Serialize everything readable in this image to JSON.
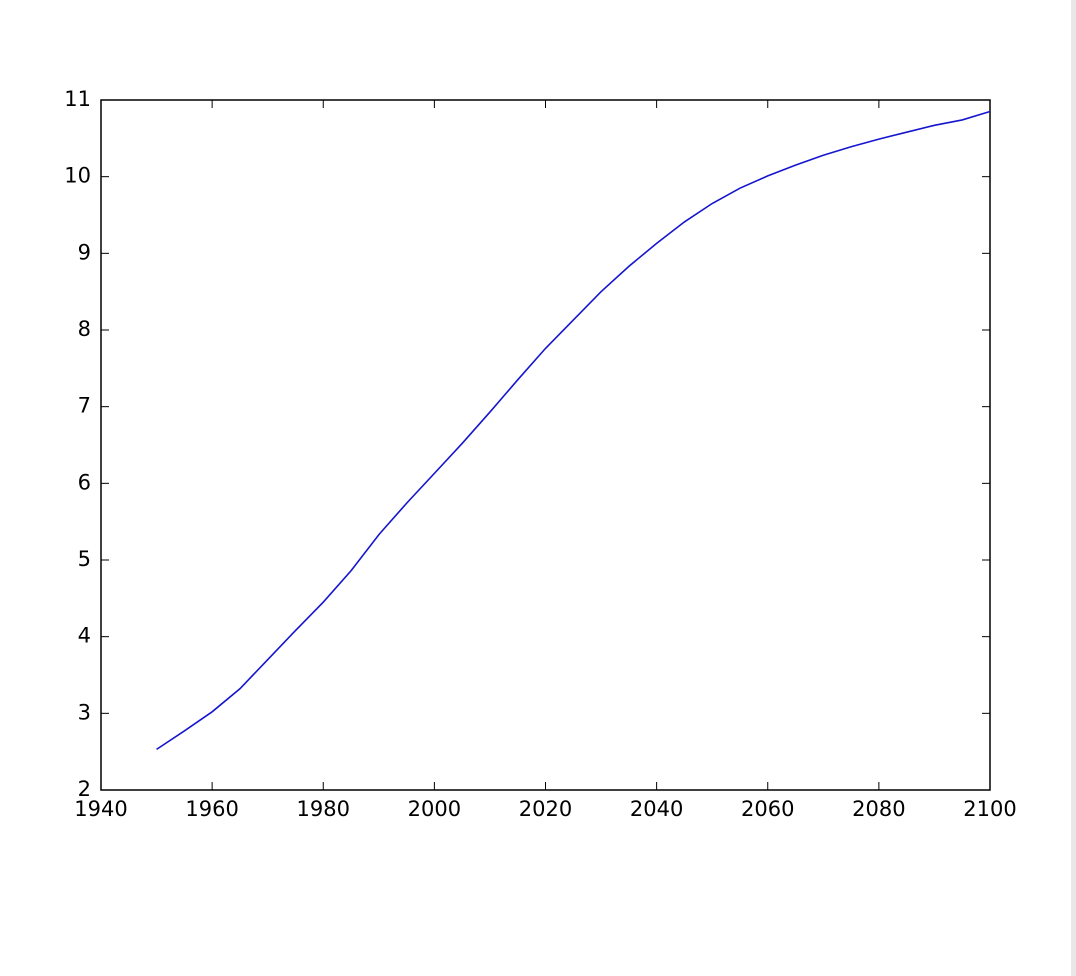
{
  "chart_data": {
    "type": "line",
    "x": [
      1950,
      1955,
      1960,
      1965,
      1970,
      1975,
      1980,
      1985,
      1990,
      1995,
      2000,
      2005,
      2010,
      2015,
      2020,
      2025,
      2030,
      2035,
      2040,
      2045,
      2050,
      2055,
      2060,
      2065,
      2070,
      2075,
      2080,
      2085,
      2090,
      2095,
      2100
    ],
    "series": [
      {
        "color": "#1515d0",
        "values": [
          2.53,
          2.77,
          3.02,
          3.32,
          3.7,
          4.08,
          4.45,
          4.86,
          5.33,
          5.74,
          6.13,
          6.52,
          6.93,
          7.35,
          7.76,
          8.13,
          8.5,
          8.83,
          9.13,
          9.41,
          9.65,
          9.85,
          10.01,
          10.15,
          10.28,
          10.39,
          10.49,
          10.58,
          10.67,
          10.74,
          10.85
        ]
      }
    ],
    "xlim": [
      1940,
      2100
    ],
    "xticks": [
      1940,
      1960,
      1980,
      2000,
      2020,
      2040,
      2060,
      2080,
      2100
    ],
    "ylim": [
      2,
      11
    ],
    "yticks": [
      2,
      3,
      4,
      5,
      6,
      7,
      8,
      9,
      10,
      11
    ],
    "grid": false
  }
}
